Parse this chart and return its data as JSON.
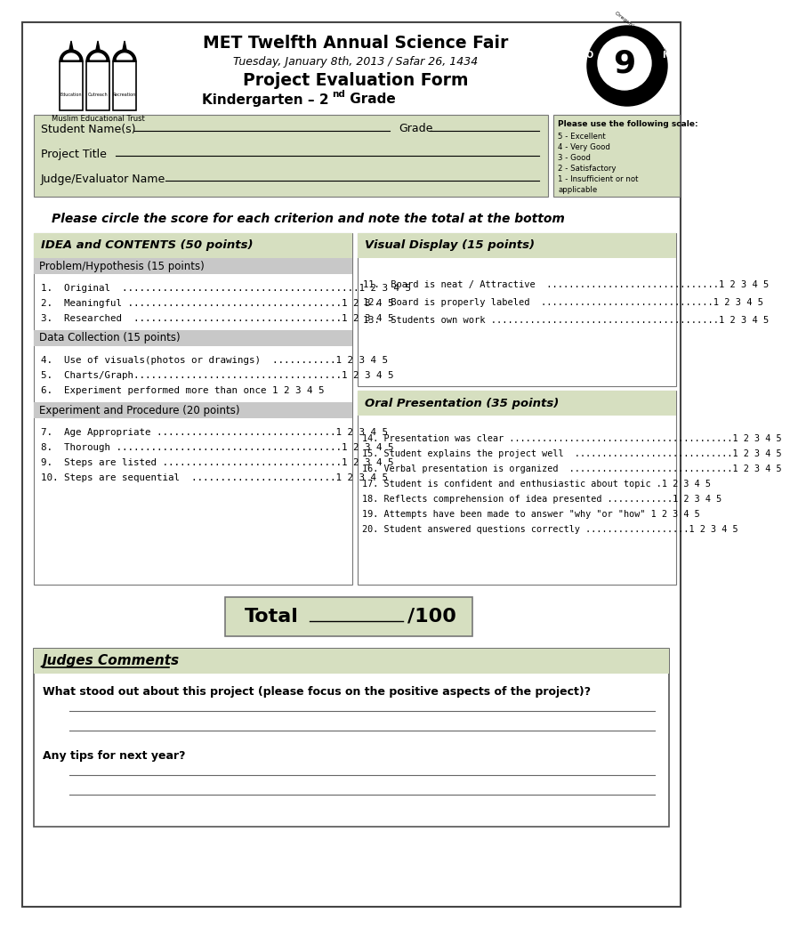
{
  "title1": "MET Twelfth Annual Science Fair",
  "title2": "Tuesday, January 8th, 2013 / Safar 26, 1434",
  "title3": "Project Evaluation Form",
  "title4": "Kindergarten – 2",
  "title4_sup": "nd",
  "title4_end": " Grade",
  "bg_color": "#ffffff",
  "light_green": "#d6dfc0",
  "gray_header": "#c8c8c8",
  "scale_title": "Please use the following scale:",
  "scale_items": [
    "5 - Excellent",
    "4 - Very Good",
    "3 - Good",
    "2 - Satisfactory",
    "1 - Insufficient or not",
    "applicable"
  ],
  "student_label": "Student Name(s)",
  "grade_label": "Grade",
  "project_label": "Project Title",
  "judge_label": "Judge/Evaluator Name",
  "instruction": "Please circle the score for each criterion and note the total at the bottom",
  "left_section_title": "IDEA and CONTENTS (50 points)",
  "sub1_title": "Problem/Hypothesis (15 points)",
  "sub1_items": [
    "1.  Original  .........................................1 2 3 4 5",
    "2.  Meaningful .....................................1 2 3 4 5",
    "3.  Researched  ....................................1 2 3 4 5"
  ],
  "sub2_title": "Data Collection (15 points)",
  "sub2_items": [
    "4.  Use of visuals(photos or drawings)  ...........1 2 3 4 5",
    "5.  Charts/Graph....................................1 2 3 4 5",
    "6.  Experiment performed more than once 1 2 3 4 5"
  ],
  "sub3_title": "Experiment and Procedure (20 points)",
  "sub3_items": [
    "7.  Age Appropriate ...............................1 2 3 4 5",
    "8.  Thorough .......................................1 2 3 4 5",
    "9.  Steps are listed ...............................1 2 3 4 5",
    "10. Steps are sequential  .........................1 2 3 4 5"
  ],
  "right_top_title": "Visual Display (15 points)",
  "right_top_items": [
    "11.  Board is neat / Attractive  ...............................1 2 3 4 5",
    "12.  Board is properly labeled  ...............................1 2 3 4 5",
    "13.  Students own work .........................................1 2 3 4 5"
  ],
  "right_bottom_title": "Oral Presentation (35 points)",
  "right_bottom_items": [
    "14. Presentation was clear .........................................1 2 3 4 5",
    "15. Student explains the project well  .............................1 2 3 4 5",
    "16. Verbal presentation is organized  ..............................1 2 3 4 5",
    "17. Student is confident and enthusiastic about topic .1 2 3 4 5",
    "18. Reflects comprehension of idea presented ............1 2 3 4 5",
    "19. Attempts have been made to answer \"why \"or \"how\" 1 2 3 4 5",
    "20. Student answered questions correctly ...................1 2 3 4 5"
  ],
  "total_label": "Total",
  "total_of": "/100",
  "comments_title": "Judges Comments",
  "comments_q1": "What stood out about this project (please focus on the positive aspects of the project)?",
  "comments_q2": "Any tips for next year?"
}
